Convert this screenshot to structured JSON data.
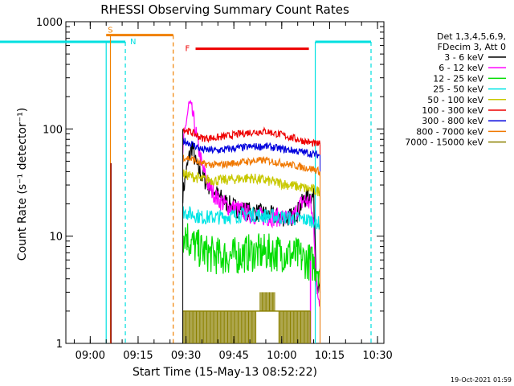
{
  "chart_data": {
    "type": "line",
    "title": "RHESSI Observing Summary Count Rates",
    "xlabel": "Start Time (15-May-13 08:52:22)",
    "ylabel": "Count Rate (s⁻¹ detector⁻¹)",
    "yscale": "log",
    "ylim": [
      1,
      1000
    ],
    "xlim": [
      "08:52:22",
      "10:32:00"
    ],
    "x_ticks": [
      "09:00",
      "09:15",
      "09:30",
      "09:45",
      "10:00",
      "10:15",
      "10:30"
    ],
    "y_ticks": [
      "1",
      "10",
      "100",
      "1000"
    ],
    "legend_position": "right",
    "legend_header": [
      "Det 1,3,4,5,6,9,",
      "FDecim 3, Att 0"
    ],
    "timestamp": "19-Oct-2021 01:59",
    "observing_flags": [
      {
        "label": "S",
        "color": "#f08000",
        "start": "08:52:22",
        "end": "09:26:00",
        "level": 750
      },
      {
        "label": "N",
        "color": "#00e0e0",
        "start": "09:11:00",
        "end": "09:11:00",
        "level": 650
      },
      {
        "label": "F",
        "color": "#ee0000",
        "start": "09:33:00",
        "end": "10:08:30",
        "level": 560
      }
    ],
    "night_intervals": [
      {
        "color": "#00e0e0",
        "start": "08:52:22",
        "end": "09:11:00",
        "level": 650
      },
      {
        "color": "#00e0e0",
        "start": "10:10:30",
        "end": "10:28:00",
        "level": 650
      }
    ],
    "series": [
      {
        "name": "3 - 6 keV",
        "color": "#000000",
        "x": [
          "09:29",
          "09:30",
          "09:31",
          "09:32",
          "09:33",
          "09:35",
          "09:37",
          "09:40",
          "09:43",
          "09:46",
          "09:50",
          "09:55",
          "10:00",
          "10:03",
          "10:05",
          "10:07",
          "10:09",
          "10:10",
          "10:11",
          "10:12"
        ],
        "y": [
          25,
          38,
          55,
          70,
          48,
          36,
          30,
          24,
          20,
          18,
          17,
          16,
          15,
          15,
          17,
          22,
          24,
          23,
          3.5,
          3
        ]
      },
      {
        "name": "6 - 12 keV",
        "color": "#ff00ff",
        "x": [
          "09:29",
          "09:30",
          "09:31",
          "09:32",
          "09:33",
          "09:34",
          "09:35",
          "09:37",
          "09:40",
          "09:43",
          "09:46",
          "09:50",
          "09:55",
          "10:00",
          "10:03",
          "10:05",
          "10:07",
          "10:09",
          "10:10",
          "10:11",
          "10:12"
        ],
        "y": [
          60,
          115,
          170,
          140,
          95,
          65,
          45,
          30,
          22,
          19,
          18,
          16,
          15,
          15,
          14,
          18,
          22,
          20,
          13,
          3,
          2.5
        ]
      },
      {
        "name": "12 - 25 keV",
        "color": "#00dd00",
        "x": [
          "09:29",
          "09:30",
          "09:31",
          "09:33",
          "09:36",
          "09:40",
          "09:45",
          "09:50",
          "09:55",
          "10:00",
          "10:05",
          "10:10",
          "10:12"
        ],
        "y": [
          10,
          11,
          9,
          8,
          7,
          6.5,
          6.5,
          7,
          7,
          7,
          6.5,
          5.5,
          5
        ]
      },
      {
        "name": "25 - 50 keV",
        "color": "#00e5e5",
        "x": [
          "09:29",
          "09:32",
          "09:35",
          "09:40",
          "09:45",
          "09:50",
          "09:55",
          "10:00",
          "10:05",
          "10:10",
          "10:12"
        ],
        "y": [
          17,
          16,
          15,
          15,
          15.5,
          16,
          15.5,
          15,
          14.5,
          14,
          13
        ]
      },
      {
        "name": "50 - 100 keV",
        "color": "#c8c800",
        "x": [
          "09:29",
          "09:32",
          "09:35",
          "09:40",
          "09:45",
          "09:50",
          "09:55",
          "10:00",
          "10:05",
          "10:10",
          "10:12"
        ],
        "y": [
          38,
          36,
          34,
          33,
          34,
          35,
          33,
          31,
          29,
          27,
          26
        ]
      },
      {
        "name": "100 - 300 keV",
        "color": "#ee0000",
        "x": [
          "09:29",
          "09:32",
          "09:35",
          "09:40",
          "09:45",
          "09:50",
          "09:55",
          "10:00",
          "10:05",
          "10:10",
          "10:12"
        ],
        "y": [
          100,
          92,
          82,
          83,
          88,
          93,
          95,
          88,
          80,
          73,
          72
        ]
      },
      {
        "name": "300 - 800 keV",
        "color": "#0000dd",
        "x": [
          "09:29",
          "09:32",
          "09:35",
          "09:40",
          "09:45",
          "09:50",
          "09:55",
          "10:00",
          "10:05",
          "10:10",
          "10:12"
        ],
        "y": [
          78,
          72,
          64,
          63,
          66,
          68,
          69,
          65,
          62,
          58,
          57
        ]
      },
      {
        "name": "800 - 7000 keV",
        "color": "#f07800",
        "x": [
          "09:29",
          "09:32",
          "09:35",
          "09:40",
          "09:45",
          "09:50",
          "09:55",
          "10:00",
          "10:05",
          "10:10",
          "10:12"
        ],
        "y": [
          55,
          52,
          47,
          46,
          48,
          50,
          51,
          48,
          45,
          42,
          40
        ]
      },
      {
        "name": "7000 - 15000 keV",
        "color": "#8b8000",
        "x": [
          "09:29",
          "09:35",
          "09:40",
          "09:45",
          "09:50",
          "09:53",
          "09:58",
          "10:00",
          "10:05",
          "10:09"
        ],
        "y": [
          2,
          2,
          2,
          2,
          2,
          3,
          3,
          2,
          2,
          2
        ]
      }
    ],
    "spikes": [
      {
        "time": "09:06:30",
        "peak": 48,
        "color": "#8b0000"
      },
      {
        "time": "10:09:00",
        "peak": 8,
        "color": "#ff00ff"
      }
    ]
  }
}
